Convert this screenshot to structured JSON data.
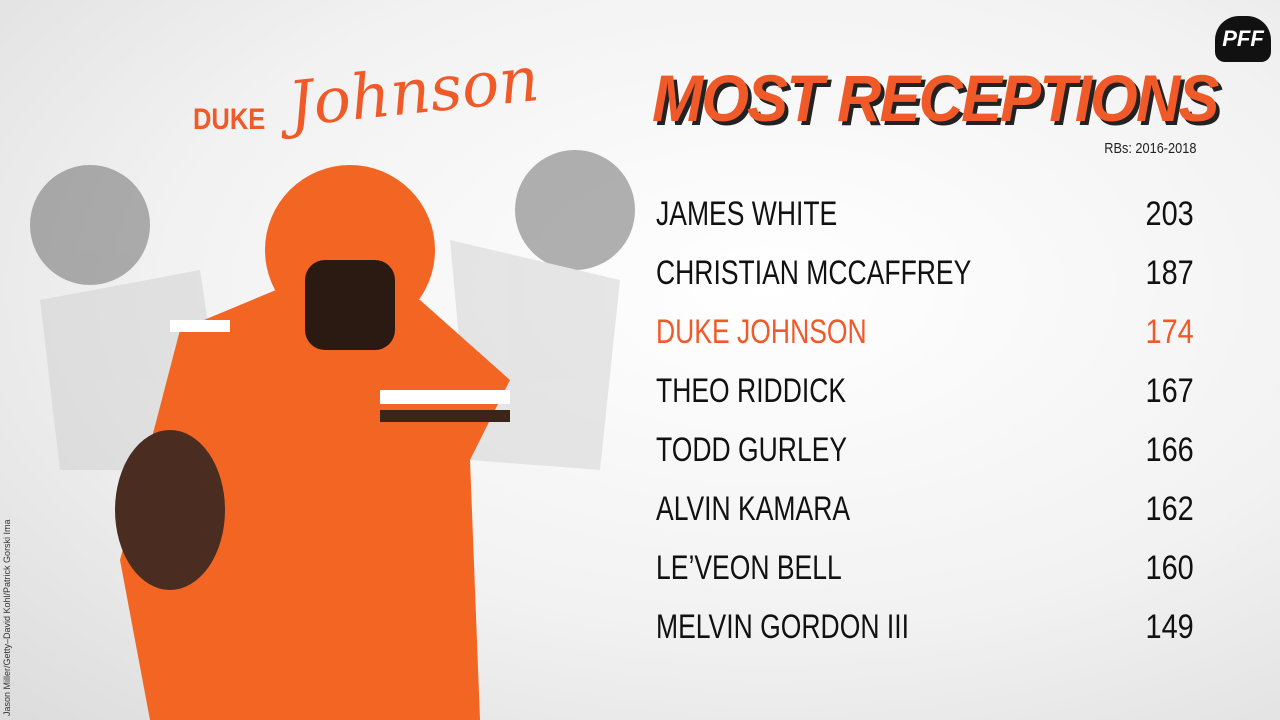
{
  "header": {
    "logo": "PFF",
    "first_name": "DUKE",
    "last_name": "Johnson",
    "title": "MOST RECEPTIONS",
    "subtitle": "RBs: 2016-2018"
  },
  "table": {
    "highlight_row": 2,
    "color": "#111111",
    "highlight_color": "#f05a28",
    "rows": [
      {
        "name": "JAMES WHITE",
        "value": 203
      },
      {
        "name": "CHRISTIAN MCCAFFREY",
        "value": 187
      },
      {
        "name": "DUKE JOHNSON",
        "value": 174
      },
      {
        "name": "THEO RIDDICK",
        "value": 167
      },
      {
        "name": "TODD GURLEY",
        "value": 166
      },
      {
        "name": "ALVIN KAMARA",
        "value": 162
      },
      {
        "name": "LE’VEON BELL",
        "value": 160
      },
      {
        "name": "MELVIN GORDON III",
        "value": 149
      }
    ]
  },
  "credit": "Jason Miller/Getty–David Kohl/Patrick Gorski Ima"
}
